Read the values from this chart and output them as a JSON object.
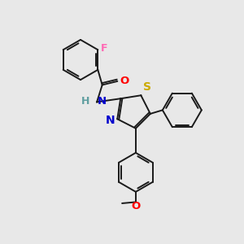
{
  "background_color": "#e8e8e8",
  "bond_color": "#1a1a1a",
  "atom_colors": {
    "F": "#ff69b4",
    "O_carbonyl": "#ff0000",
    "N": "#0000cd",
    "H": "#5f9ea0",
    "S": "#ccaa00",
    "O_methoxy": "#ff0000"
  },
  "figsize": [
    3.0,
    3.0
  ],
  "dpi": 100,
  "lw": 1.4
}
